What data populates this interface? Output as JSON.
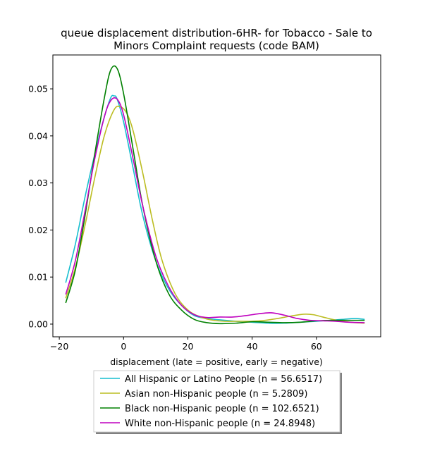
{
  "chart_data": {
    "type": "line",
    "title_lines": [
      "queue displacement distribution-6HR-  for Tobacco - Sale to",
      "Minors Complaint  requests (code BAM)"
    ],
    "xlabel": "displacement (late = positive, early = negative)",
    "ylabel": "",
    "xlim": [
      -22,
      80
    ],
    "ylim": [
      -0.0027,
      0.0572
    ],
    "xticks": [
      -20,
      0,
      20,
      40,
      60
    ],
    "xtick_labels": [
      "−20",
      "0",
      "20",
      "40",
      "60"
    ],
    "yticks": [
      0.0,
      0.01,
      0.02,
      0.03,
      0.04,
      0.05
    ],
    "ytick_labels": [
      "0.00",
      "0.01",
      "0.02",
      "0.03",
      "0.04",
      "0.05"
    ],
    "grid": false,
    "legend_position": "below plot, centered",
    "series": [
      {
        "name": "All Hispanic or Latino People (n = 56.6517)",
        "color": "#17becf",
        "points": [
          [
            -18,
            0.0088
          ],
          [
            -15,
            0.017
          ],
          [
            -12,
            0.027
          ],
          [
            -9,
            0.036
          ],
          [
            -6,
            0.044
          ],
          [
            -4,
            0.0481
          ],
          [
            -3,
            0.0485
          ],
          [
            -2,
            0.0478
          ],
          [
            0,
            0.043
          ],
          [
            3,
            0.033
          ],
          [
            6,
            0.023
          ],
          [
            10,
            0.0135
          ],
          [
            14,
            0.0075
          ],
          [
            18,
            0.004
          ],
          [
            22,
            0.0018
          ],
          [
            26,
            0.0012
          ],
          [
            30,
            0.0009
          ],
          [
            35,
            0.0006
          ],
          [
            40,
            0.0004
          ],
          [
            45,
            0.0002
          ],
          [
            50,
            0.0002
          ],
          [
            55,
            0.0004
          ],
          [
            60,
            0.0006
          ],
          [
            64,
            0.0008
          ],
          [
            68,
            0.001
          ],
          [
            72,
            0.0012
          ],
          [
            75,
            0.001
          ]
        ]
      },
      {
        "name": "Asian non-Hispanic people (n = 5.2809)",
        "color": "#bcbd22",
        "points": [
          [
            -18,
            0.0055
          ],
          [
            -15,
            0.012
          ],
          [
            -12,
            0.021
          ],
          [
            -9,
            0.031
          ],
          [
            -6,
            0.04
          ],
          [
            -3,
            0.0455
          ],
          [
            -1,
            0.0462
          ],
          [
            1,
            0.0448
          ],
          [
            3,
            0.041
          ],
          [
            6,
            0.032
          ],
          [
            9,
            0.022
          ],
          [
            12,
            0.0135
          ],
          [
            16,
            0.0065
          ],
          [
            20,
            0.003
          ],
          [
            24,
            0.0015
          ],
          [
            28,
            0.0008
          ],
          [
            32,
            0.0006
          ],
          [
            36,
            0.0006
          ],
          [
            40,
            0.0006
          ],
          [
            44,
            0.0008
          ],
          [
            48,
            0.0012
          ],
          [
            52,
            0.0017
          ],
          [
            56,
            0.0021
          ],
          [
            59,
            0.002
          ],
          [
            62,
            0.0015
          ],
          [
            65,
            0.001
          ],
          [
            68,
            0.0006
          ],
          [
            72,
            0.0003
          ],
          [
            75,
            0.0002
          ]
        ]
      },
      {
        "name": "Black non-Hispanic people (n = 102.6521)",
        "color": "#008000",
        "points": [
          [
            -18,
            0.0045
          ],
          [
            -15,
            0.0115
          ],
          [
            -12,
            0.023
          ],
          [
            -9,
            0.036
          ],
          [
            -6,
            0.048
          ],
          [
            -4,
            0.054
          ],
          [
            -2,
            0.0543
          ],
          [
            0,
            0.049
          ],
          [
            3,
            0.037
          ],
          [
            6,
            0.025
          ],
          [
            10,
            0.0135
          ],
          [
            14,
            0.0065
          ],
          [
            18,
            0.003
          ],
          [
            22,
            0.001
          ],
          [
            26,
            0.0003
          ],
          [
            30,
            0.0001
          ],
          [
            35,
            0.0002
          ],
          [
            40,
            0.0005
          ],
          [
            45,
            0.0004
          ],
          [
            50,
            0.0003
          ],
          [
            55,
            0.0004
          ],
          [
            60,
            0.0007
          ],
          [
            65,
            0.0008
          ],
          [
            70,
            0.0008
          ],
          [
            75,
            0.0008
          ]
        ]
      },
      {
        "name": "White non-Hispanic people (n = 24.8948)",
        "color": "#bf00bf",
        "points": [
          [
            -18,
            0.0063
          ],
          [
            -15,
            0.0135
          ],
          [
            -12,
            0.024
          ],
          [
            -9,
            0.035
          ],
          [
            -6,
            0.044
          ],
          [
            -4,
            0.0475
          ],
          [
            -2,
            0.0478
          ],
          [
            0,
            0.0445
          ],
          [
            3,
            0.035
          ],
          [
            6,
            0.025
          ],
          [
            10,
            0.0145
          ],
          [
            14,
            0.008
          ],
          [
            18,
            0.004
          ],
          [
            22,
            0.002
          ],
          [
            26,
            0.0014
          ],
          [
            30,
            0.0015
          ],
          [
            34,
            0.0015
          ],
          [
            38,
            0.0018
          ],
          [
            42,
            0.0022
          ],
          [
            46,
            0.0024
          ],
          [
            50,
            0.0019
          ],
          [
            54,
            0.0012
          ],
          [
            58,
            0.0008
          ],
          [
            62,
            0.0007
          ],
          [
            66,
            0.0006
          ],
          [
            70,
            0.0004
          ],
          [
            75,
            0.0003
          ]
        ]
      }
    ]
  }
}
